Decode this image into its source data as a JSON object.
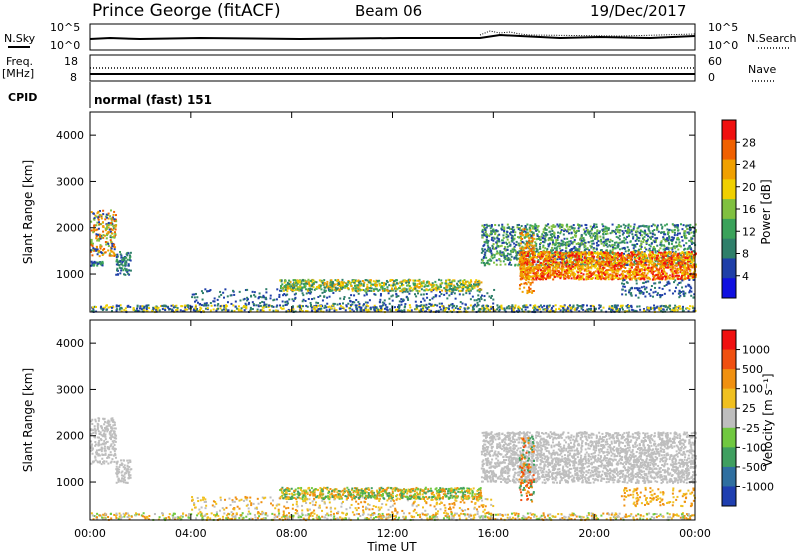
{
  "header": {
    "station": "Prince George (fitACF)",
    "beam": "Beam 06",
    "date": "19/Dec/2017"
  },
  "summary_panels": {
    "nsky_label": "N.Sky",
    "nsky_ticks": [
      "10^5",
      "10^0"
    ],
    "nsearch_label": "N.Search",
    "nsearch_ticks": [
      "10^5",
      "10^0"
    ],
    "freq_label_1": "Freq.",
    "freq_label_2": "[MHz]",
    "freq_ticks": [
      "18",
      "8"
    ],
    "nave_label": "Nave",
    "nave_ticks": [
      "60",
      "0"
    ],
    "cpid_label": "CPID",
    "cpid_value": "normal (fast) 151"
  },
  "colors": {
    "power_scale": [
      "#1010e0",
      "#1f3fa8",
      "#2f7f6a",
      "#3aa25a",
      "#80c040",
      "#f0d000",
      "#f0a000",
      "#f06000",
      "#f01010"
    ],
    "velocity_scale": [
      "#1f3fb0",
      "#2f6fa0",
      "#3f9f60",
      "#70c840",
      "#bebebe",
      "#f0c020",
      "#f09010",
      "#f05010",
      "#f01010"
    ]
  },
  "chart_data": [
    {
      "type": "heatmap",
      "name": "power",
      "ylabel": "Slant Range [km]",
      "ylim": [
        180,
        4500
      ],
      "yticks": [
        "4000",
        "3000",
        "2000",
        "1000"
      ],
      "xlim": [
        "00:00",
        "24:00"
      ],
      "colorbar_label": "Power [dB]",
      "colorbar_ticks": [
        "28",
        "24",
        "20",
        "16",
        "12",
        "8",
        "4"
      ],
      "colorbar_range": [
        0,
        32
      ]
    },
    {
      "type": "heatmap",
      "name": "velocity",
      "ylabel": "Slant Range [km]",
      "ylim": [
        180,
        4500
      ],
      "yticks": [
        "4000",
        "3000",
        "2000",
        "1000"
      ],
      "xlim": [
        "00:00",
        "24:00"
      ],
      "xticks": [
        "00:00",
        "04:00",
        "08:00",
        "12:00",
        "16:00",
        "20:00",
        "00:00"
      ],
      "xlabel": "Time UT",
      "colorbar_label": "Velocity [m s⁻¹]",
      "colorbar_ticks": [
        "1000",
        "500",
        "100",
        "25",
        "-25",
        "-100",
        "-500",
        "-1000"
      ]
    }
  ]
}
